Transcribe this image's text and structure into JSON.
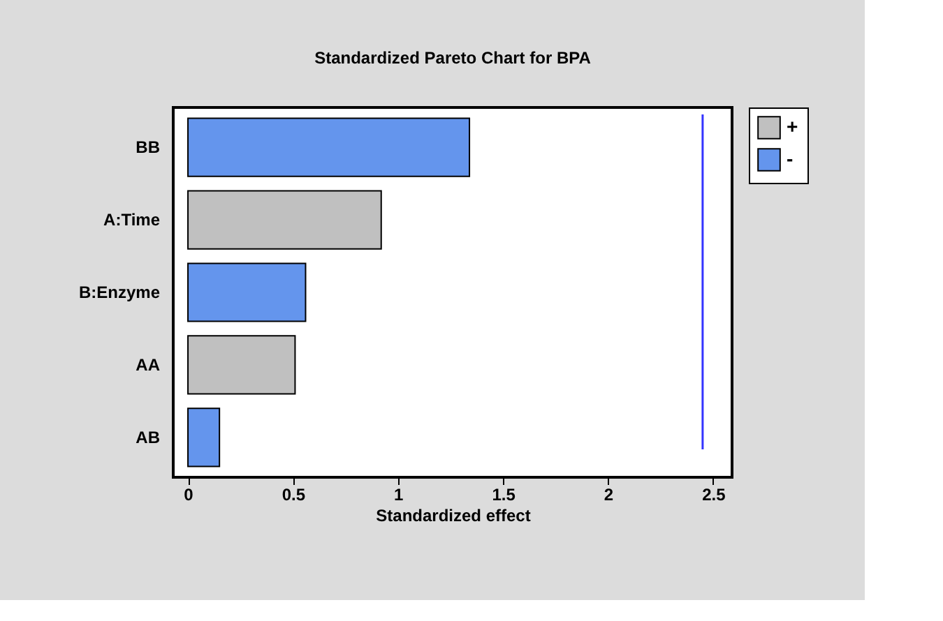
{
  "chart_data": {
    "type": "bar",
    "orientation": "horizontal",
    "title": "Standardized Pareto Chart for BPA",
    "xlabel": "Standardized effect",
    "categories": [
      "BB",
      "A:Time",
      "B:Enzyme",
      "AA",
      "AB"
    ],
    "series": [
      {
        "name": "+",
        "color": "#c0c0c0",
        "values": [
          null,
          0.92,
          null,
          0.51,
          null
        ]
      },
      {
        "name": "-",
        "color": "#6495ed",
        "values": [
          1.34,
          null,
          0.56,
          null,
          0.15
        ]
      }
    ],
    "xlim": [
      -0.07,
      2.59
    ],
    "xticks": [
      0,
      0.5,
      1,
      1.5,
      2,
      2.5
    ],
    "ref_lines": [
      {
        "axis": "x",
        "value": 2.45,
        "color": "#3333ff"
      }
    ],
    "legend": "top right",
    "grid": false
  }
}
